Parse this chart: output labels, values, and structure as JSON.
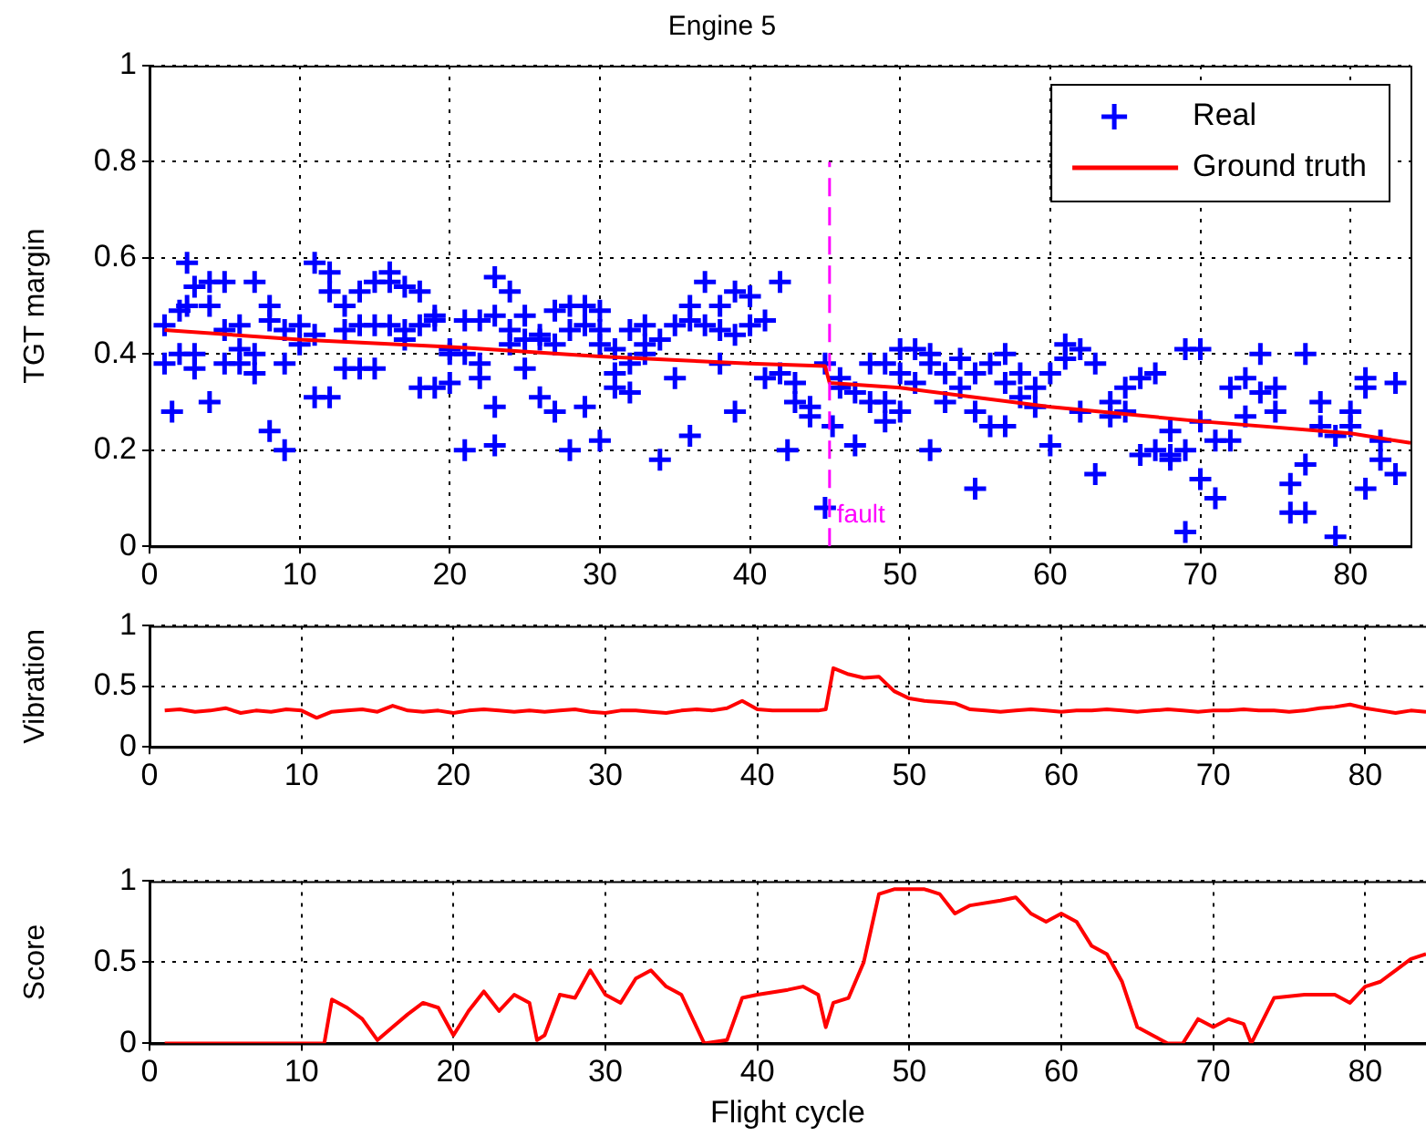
{
  "chart_data": [
    {
      "type": "scatter",
      "title": "Engine 5",
      "ylabel": "TGT margin",
      "xlim": [
        0,
        84
      ],
      "xticks": [
        0,
        10,
        20,
        30,
        40,
        50,
        60,
        70,
        80
      ],
      "ylim": [
        0,
        1
      ],
      "yticks": [
        0,
        0.2,
        0.4,
        0.6,
        0.8,
        1
      ],
      "grid": true,
      "legend": "top right",
      "series": [
        {
          "name": "Real",
          "marker": "cross",
          "color": "#0000ff",
          "x": [
            1,
            1,
            1.5,
            2,
            2,
            2.5,
            2.5,
            3,
            3,
            3,
            4,
            4,
            4,
            5,
            5,
            5,
            6,
            6,
            6,
            7,
            7,
            7,
            8,
            8,
            8,
            9,
            9,
            9,
            10,
            10,
            11,
            11,
            11,
            12,
            12,
            12,
            13,
            13,
            13,
            14,
            14,
            14,
            15,
            15,
            15,
            16,
            16,
            16,
            17,
            17,
            17,
            18,
            18,
            18,
            19,
            19,
            19,
            20,
            20,
            20,
            21,
            21,
            21,
            22,
            22,
            22,
            23,
            23,
            23,
            23,
            24,
            24,
            24,
            25,
            25,
            25,
            26,
            26,
            26,
            27,
            27,
            27,
            28,
            28,
            28,
            29,
            29,
            29,
            30,
            30,
            30,
            30,
            31,
            31,
            31,
            32,
            32,
            32,
            33,
            33,
            33,
            34,
            34,
            35,
            35,
            36,
            36,
            36,
            37,
            37,
            38,
            38,
            38,
            39,
            39,
            39,
            40,
            40,
            41,
            41,
            42,
            42,
            42.5,
            43,
            43,
            44,
            44,
            45,
            45,
            45.5,
            46,
            46,
            47,
            47,
            48,
            48,
            49,
            49,
            49,
            50,
            50,
            50,
            51,
            51,
            52,
            52,
            52,
            53,
            53,
            54,
            54,
            55,
            55,
            55,
            56,
            56,
            57,
            57,
            57,
            58,
            58,
            59,
            59,
            60,
            60,
            61,
            61,
            62,
            62,
            63,
            63,
            64,
            64,
            65,
            65,
            66,
            66,
            67,
            67,
            68,
            68,
            68,
            69,
            69,
            69,
            70,
            70,
            70,
            71,
            71,
            72,
            72,
            73,
            73,
            74,
            74,
            75,
            75,
            76,
            76,
            77,
            77,
            77,
            78,
            78,
            79,
            79,
            80,
            80,
            81,
            81,
            81,
            82,
            82,
            83,
            83
          ],
          "values": [
            0.46,
            0.38,
            0.28,
            0.49,
            0.4,
            0.59,
            0.5,
            0.54,
            0.37,
            0.4,
            0.55,
            0.3,
            0.5,
            0.55,
            0.38,
            0.45,
            0.41,
            0.46,
            0.38,
            0.36,
            0.4,
            0.55,
            0.47,
            0.5,
            0.24,
            0.45,
            0.2,
            0.38,
            0.46,
            0.42,
            0.59,
            0.31,
            0.44,
            0.57,
            0.31,
            0.53,
            0.5,
            0.37,
            0.45,
            0.53,
            0.37,
            0.46,
            0.55,
            0.37,
            0.46,
            0.57,
            0.55,
            0.46,
            0.43,
            0.45,
            0.54,
            0.46,
            0.33,
            0.53,
            0.47,
            0.33,
            0.48,
            0.4,
            0.34,
            0.41,
            0.2,
            0.4,
            0.47,
            0.35,
            0.47,
            0.38,
            0.56,
            0.29,
            0.21,
            0.48,
            0.53,
            0.45,
            0.42,
            0.37,
            0.48,
            0.43,
            0.43,
            0.31,
            0.44,
            0.28,
            0.49,
            0.42,
            0.2,
            0.5,
            0.45,
            0.29,
            0.46,
            0.5,
            0.22,
            0.45,
            0.42,
            0.49,
            0.33,
            0.36,
            0.41,
            0.45,
            0.38,
            0.32,
            0.42,
            0.46,
            0.4,
            0.18,
            0.43,
            0.46,
            0.35,
            0.5,
            0.47,
            0.23,
            0.55,
            0.46,
            0.45,
            0.5,
            0.38,
            0.53,
            0.28,
            0.44,
            0.52,
            0.46,
            0.47,
            0.35,
            0.55,
            0.36,
            0.2,
            0.34,
            0.3,
            0.27,
            0.29,
            0.08,
            0.38,
            0.25,
            0.35,
            0.33,
            0.21,
            0.32,
            0.38,
            0.3,
            0.26,
            0.38,
            0.3,
            0.41,
            0.36,
            0.28,
            0.41,
            0.34,
            0.2,
            0.38,
            0.4,
            0.36,
            0.3,
            0.33,
            0.39,
            0.12,
            0.36,
            0.28,
            0.38,
            0.25,
            0.4,
            0.34,
            0.25,
            0.36,
            0.31,
            0.29,
            0.33,
            0.36,
            0.21,
            0.42,
            0.39,
            0.41,
            0.28,
            0.38,
            0.15,
            0.3,
            0.27,
            0.33,
            0.28,
            0.35,
            0.19,
            0.36,
            0.2,
            0.19,
            0.24,
            0.18,
            0.41,
            0.03,
            0.2,
            0.41,
            0.26,
            0.14,
            0.22,
            0.1,
            0.33,
            0.22,
            0.35,
            0.27,
            0.4,
            0.32,
            0.33,
            0.28,
            0.13,
            0.07,
            0.4,
            0.07,
            0.17,
            0.25,
            0.3,
            0.02,
            0.23,
            0.28,
            0.25,
            0.12,
            0.33,
            0.35,
            0.22,
            0.18,
            0.34,
            0.15
          ]
        },
        {
          "name": "Ground truth",
          "type": "line",
          "color": "#ff0000",
          "x": [
            1,
            10,
            20,
            30,
            40,
            45,
            45.3,
            50,
            60,
            70,
            80,
            84
          ],
          "values": [
            0.45,
            0.43,
            0.415,
            0.395,
            0.38,
            0.375,
            0.34,
            0.33,
            0.29,
            0.26,
            0.235,
            0.215
          ]
        }
      ],
      "ref_lines": [
        {
          "axis": "x",
          "value": 45.3,
          "label": "fault",
          "color": "#ff00ff",
          "line_style": "dashed"
        }
      ]
    },
    {
      "type": "line",
      "ylabel": "Vibration",
      "xlim": [
        0,
        84
      ],
      "xticks": [
        0,
        10,
        20,
        30,
        40,
        50,
        60,
        70,
        80
      ],
      "ylim": [
        0,
        1
      ],
      "yticks": [
        0,
        0.5,
        1
      ],
      "grid": true,
      "series": [
        {
          "color": "#ff0000",
          "x": [
            1,
            2,
            3,
            4,
            5,
            6,
            7,
            8,
            9,
            10,
            11,
            12,
            13,
            14,
            15,
            16,
            17,
            18,
            19,
            20,
            21,
            22,
            23,
            24,
            25,
            26,
            27,
            28,
            29,
            30,
            31,
            32,
            33,
            34,
            35,
            36,
            37,
            38,
            39,
            40,
            41,
            42,
            43,
            44,
            44.5,
            45,
            46,
            47,
            48,
            49,
            50,
            51,
            52,
            53,
            54,
            55,
            56,
            57,
            58,
            59,
            60,
            61,
            62,
            63,
            64,
            65,
            66,
            67,
            68,
            69,
            70,
            71,
            72,
            73,
            74,
            75,
            76,
            77,
            78,
            79,
            80,
            81,
            82,
            83,
            84
          ],
          "values": [
            0.3,
            0.31,
            0.29,
            0.3,
            0.32,
            0.28,
            0.3,
            0.29,
            0.31,
            0.3,
            0.24,
            0.29,
            0.3,
            0.31,
            0.29,
            0.34,
            0.3,
            0.29,
            0.3,
            0.28,
            0.3,
            0.31,
            0.3,
            0.29,
            0.3,
            0.29,
            0.3,
            0.31,
            0.29,
            0.28,
            0.3,
            0.3,
            0.29,
            0.28,
            0.3,
            0.31,
            0.3,
            0.32,
            0.38,
            0.31,
            0.3,
            0.3,
            0.3,
            0.3,
            0.31,
            0.65,
            0.6,
            0.57,
            0.58,
            0.46,
            0.4,
            0.38,
            0.37,
            0.36,
            0.31,
            0.3,
            0.29,
            0.3,
            0.31,
            0.3,
            0.29,
            0.3,
            0.3,
            0.31,
            0.3,
            0.29,
            0.3,
            0.31,
            0.3,
            0.29,
            0.3,
            0.3,
            0.31,
            0.3,
            0.3,
            0.29,
            0.3,
            0.32,
            0.33,
            0.35,
            0.32,
            0.3,
            0.28,
            0.3,
            0.29
          ]
        }
      ]
    },
    {
      "type": "line",
      "ylabel": "Score",
      "xlabel": "Flight cycle",
      "xlim": [
        0,
        84
      ],
      "xticks": [
        0,
        10,
        20,
        30,
        40,
        50,
        60,
        70,
        80
      ],
      "ylim": [
        0,
        1
      ],
      "yticks": [
        0,
        0.5,
        1
      ],
      "grid": true,
      "series": [
        {
          "color": "#ff0000",
          "x": [
            1,
            11.5,
            12,
            13,
            14,
            15,
            16,
            17,
            18,
            19,
            20,
            21,
            22,
            23,
            24,
            25,
            25.5,
            26,
            27,
            28,
            29,
            30,
            31,
            32,
            33,
            34,
            35,
            36,
            36.5,
            38,
            39,
            40,
            42,
            43,
            44,
            44.5,
            45,
            46,
            47,
            48,
            49,
            51,
            52,
            53,
            54,
            56,
            57,
            58,
            59,
            60,
            61,
            62,
            63,
            64,
            65,
            66,
            67,
            68,
            69,
            70,
            71,
            72,
            72.5,
            74,
            76,
            78,
            79,
            80,
            81,
            82,
            83,
            84
          ],
          "values": [
            0,
            0,
            0.27,
            0.22,
            0.15,
            0.02,
            0.1,
            0.18,
            0.25,
            0.22,
            0.05,
            0.2,
            0.32,
            0.2,
            0.3,
            0.25,
            0.02,
            0.05,
            0.3,
            0.28,
            0.45,
            0.3,
            0.25,
            0.4,
            0.45,
            0.35,
            0.3,
            0.1,
            0,
            0.02,
            0.28,
            0.3,
            0.33,
            0.35,
            0.3,
            0.1,
            0.25,
            0.28,
            0.5,
            0.92,
            0.95,
            0.95,
            0.92,
            0.8,
            0.85,
            0.88,
            0.9,
            0.8,
            0.75,
            0.8,
            0.75,
            0.6,
            0.55,
            0.38,
            0.1,
            0.05,
            0,
            0,
            0.15,
            0.1,
            0.15,
            0.12,
            0,
            0.28,
            0.3,
            0.3,
            0.25,
            0.35,
            0.38,
            0.45,
            0.52,
            0.55
          ]
        }
      ]
    }
  ]
}
